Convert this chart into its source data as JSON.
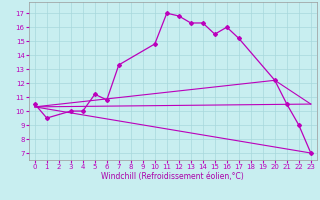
{
  "xlabel": "Windchill (Refroidissement éolien,°C)",
  "xlim": [
    -0.5,
    23.5
  ],
  "ylim": [
    6.5,
    17.8
  ],
  "yticks": [
    7,
    8,
    9,
    10,
    11,
    12,
    13,
    14,
    15,
    16,
    17
  ],
  "xticks": [
    0,
    1,
    2,
    3,
    4,
    5,
    6,
    7,
    8,
    9,
    10,
    11,
    12,
    13,
    14,
    15,
    16,
    17,
    18,
    19,
    20,
    21,
    22,
    23
  ],
  "background_color": "#c8eef0",
  "grid_color": "#a8d8dc",
  "line_color": "#bb00bb",
  "curve_with_markers": {
    "x": [
      0,
      1,
      3,
      4,
      5,
      6,
      7,
      10,
      11,
      12,
      13,
      14,
      15,
      16,
      17,
      20,
      21,
      22,
      23
    ],
    "y": [
      10.5,
      9.5,
      10.0,
      10.0,
      11.2,
      10.8,
      13.3,
      14.8,
      17.0,
      16.8,
      16.3,
      16.3,
      15.5,
      16.0,
      15.2,
      12.2,
      10.5,
      9.0,
      7.0
    ]
  },
  "line_bottom": {
    "x": [
      0,
      23
    ],
    "y": [
      10.3,
      7.0
    ]
  },
  "line_middle": {
    "x": [
      0,
      23
    ],
    "y": [
      10.3,
      10.5
    ]
  },
  "line_top": {
    "x": [
      0,
      20,
      23
    ],
    "y": [
      10.3,
      12.2,
      10.5
    ]
  },
  "tick_fontsize": 5,
  "xlabel_fontsize": 5.5,
  "xlabel_color": "#aa00aa"
}
